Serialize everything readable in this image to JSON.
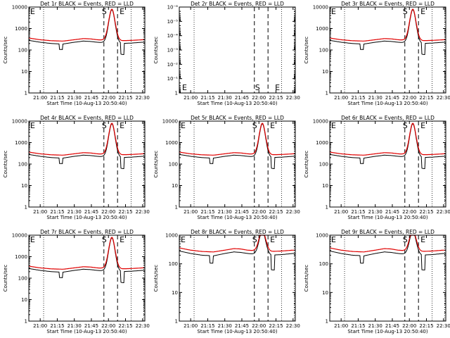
{
  "colors": {
    "background": "#ffffff",
    "events": "#000000",
    "lld": "#e00000",
    "axis": "#000000"
  },
  "chart_data": [
    {
      "type": "line",
      "title": "Det 1r BLACK = Events, RED = LLD",
      "xlabel": "Start Time (10-Aug-13 20:50:40)",
      "ylabel": "Counts/sec",
      "yscale": "log",
      "xlim": [
        "20:50",
        "22:32"
      ],
      "ylim": [
        1,
        10000
      ],
      "markers": [
        "S",
        "E"
      ],
      "has_data": true,
      "low": "narrow"
    },
    {
      "type": "line",
      "title": "Det 2r BLACK = Events, RED = LLD",
      "xlabel": "Start Time (10-Aug-13 20:50:40)",
      "ylabel": "Counts/sec",
      "yscale": "log",
      "xlim": [
        "20:50",
        "22:32"
      ],
      "ylim": [
        1,
        1e-06
      ],
      "markers": [
        "E",
        "S",
        "E"
      ],
      "has_data": false,
      "low": "none"
    },
    {
      "type": "line",
      "title": "Det 3r BLACK = Events, RED = LLD",
      "xlabel": "Start Time (10-Aug-13 20:50:40)",
      "ylabel": "Counts/sec",
      "yscale": "log",
      "xlim": [
        "20:50",
        "22:32"
      ],
      "ylim": [
        1,
        10000
      ],
      "markers": [
        "S",
        "E"
      ],
      "has_data": true,
      "low": "wide"
    },
    {
      "type": "line",
      "title": "Det 4r BLACK = Events, RED = LLD",
      "xlabel": "Start Time (10-Aug-13 20:50:40)",
      "ylabel": "Counts/sec",
      "yscale": "log",
      "xlim": [
        "20:50",
        "22:32"
      ],
      "ylim": [
        1,
        10000
      ],
      "markers": [
        "S",
        "E"
      ],
      "has_data": true,
      "low": "narrow"
    },
    {
      "type": "line",
      "title": "Det 5r BLACK = Events, RED = LLD",
      "xlabel": "Start Time (10-Aug-13 20:50:40)",
      "ylabel": "Counts/sec",
      "yscale": "log",
      "xlim": [
        "20:50",
        "22:32"
      ],
      "ylim": [
        1,
        10000
      ],
      "markers": [
        "S",
        "E"
      ],
      "has_data": true,
      "low": "narrow"
    },
    {
      "type": "line",
      "title": "Det 6r BLACK = Events, RED = LLD",
      "xlabel": "Start Time (10-Aug-13 20:50:40)",
      "ylabel": "Counts/sec",
      "yscale": "log",
      "xlim": [
        "20:50",
        "22:32"
      ],
      "ylim": [
        1,
        10000
      ],
      "markers": [
        "S",
        "E"
      ],
      "has_data": true,
      "low": "narrow"
    },
    {
      "type": "line",
      "title": "Det 7r BLACK = Events, RED = LLD",
      "xlabel": "Start Time (10-Aug-13 20:50:40)",
      "ylabel": "Counts/sec",
      "yscale": "log",
      "xlim": [
        "20:50",
        "22:32"
      ],
      "ylim": [
        1,
        10000
      ],
      "markers": [
        "S",
        "E"
      ],
      "has_data": true,
      "low": "narrow"
    },
    {
      "type": "line",
      "title": "Det 8r BLACK = Events, RED = LLD",
      "xlabel": "Start Time (10-Aug-13 20:50:40)",
      "ylabel": "Counts/sec",
      "yscale": "log",
      "xlim": [
        "20:50",
        "22:32"
      ],
      "ylim": [
        1,
        1000
      ],
      "markers": [
        "S",
        "E"
      ],
      "has_data": true,
      "low": "wide"
    },
    {
      "type": "line",
      "title": "Det 9r BLACK = Events, RED = LLD",
      "xlabel": "Start Time (10-Aug-13 20:50:40)",
      "ylabel": "Counts/sec",
      "yscale": "log",
      "xlim": [
        "20:50",
        "22:32"
      ],
      "ylim": [
        1,
        1000
      ],
      "markers": [
        "S",
        "E"
      ],
      "has_data": true,
      "low": "wide"
    }
  ],
  "shared": {
    "xticks": [
      "21:00",
      "21:15",
      "21:30",
      "21:45",
      "22:00",
      "22:15",
      "22:30"
    ],
    "vertical_lines": {
      "dotted": [
        "21:03",
        "22:20",
        "22:31"
      ],
      "dashed_start": "21:56",
      "dashed_end": "22:08",
      "dashed_mid": "22:14"
    },
    "events_series": [
      [
        "20:50",
        280
      ],
      [
        "21:00",
        230
      ],
      [
        "21:10",
        200
      ],
      [
        "21:20",
        190
      ],
      [
        "21:30",
        230
      ],
      [
        "21:38",
        260
      ],
      [
        "21:44",
        250
      ],
      [
        "21:50",
        230
      ],
      [
        "21:55",
        220
      ],
      [
        "22:10",
        200
      ],
      [
        "22:20",
        210
      ],
      [
        "22:30",
        230
      ]
    ],
    "lld_series": [
      [
        "20:50",
        360
      ],
      [
        "21:00",
        300
      ],
      [
        "21:10",
        270
      ],
      [
        "21:20",
        260
      ],
      [
        "21:30",
        300
      ],
      [
        "21:38",
        340
      ],
      [
        "21:44",
        330
      ],
      [
        "21:50",
        300
      ],
      [
        "21:55",
        290
      ],
      [
        "22:10",
        270
      ],
      [
        "22:20",
        280
      ],
      [
        "22:30",
        300
      ]
    ],
    "flare": {
      "peak_time": "22:03",
      "peak_lld": 8000,
      "peak_events": 7500
    }
  }
}
